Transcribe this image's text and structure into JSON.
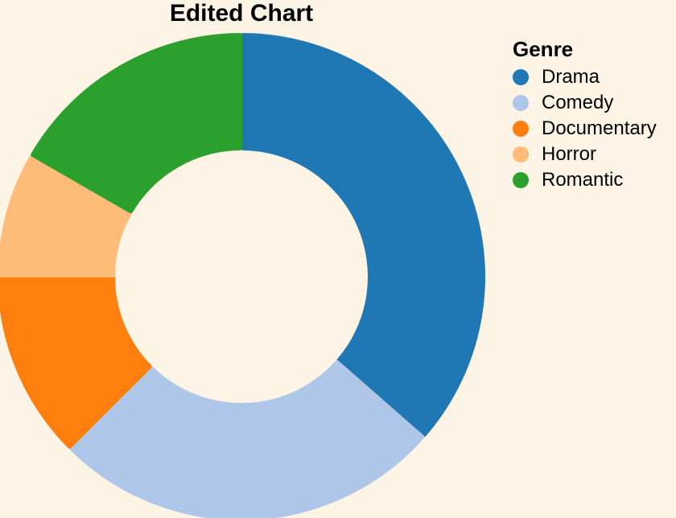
{
  "chart_data": {
    "type": "pie",
    "title": "Edited Chart",
    "legend_title": "Genre",
    "legend_position": "top-right",
    "donut": true,
    "categories": [
      "Drama",
      "Comedy",
      "Documentary",
      "Horror",
      "Romantic"
    ],
    "values": [
      35,
      25,
      12,
      8,
      16
    ],
    "colors": [
      "#1f77b4",
      "#aec7e8",
      "#ff7f0e",
      "#ffbb78",
      "#2ca02c"
    ]
  },
  "background": "#fef4e6"
}
